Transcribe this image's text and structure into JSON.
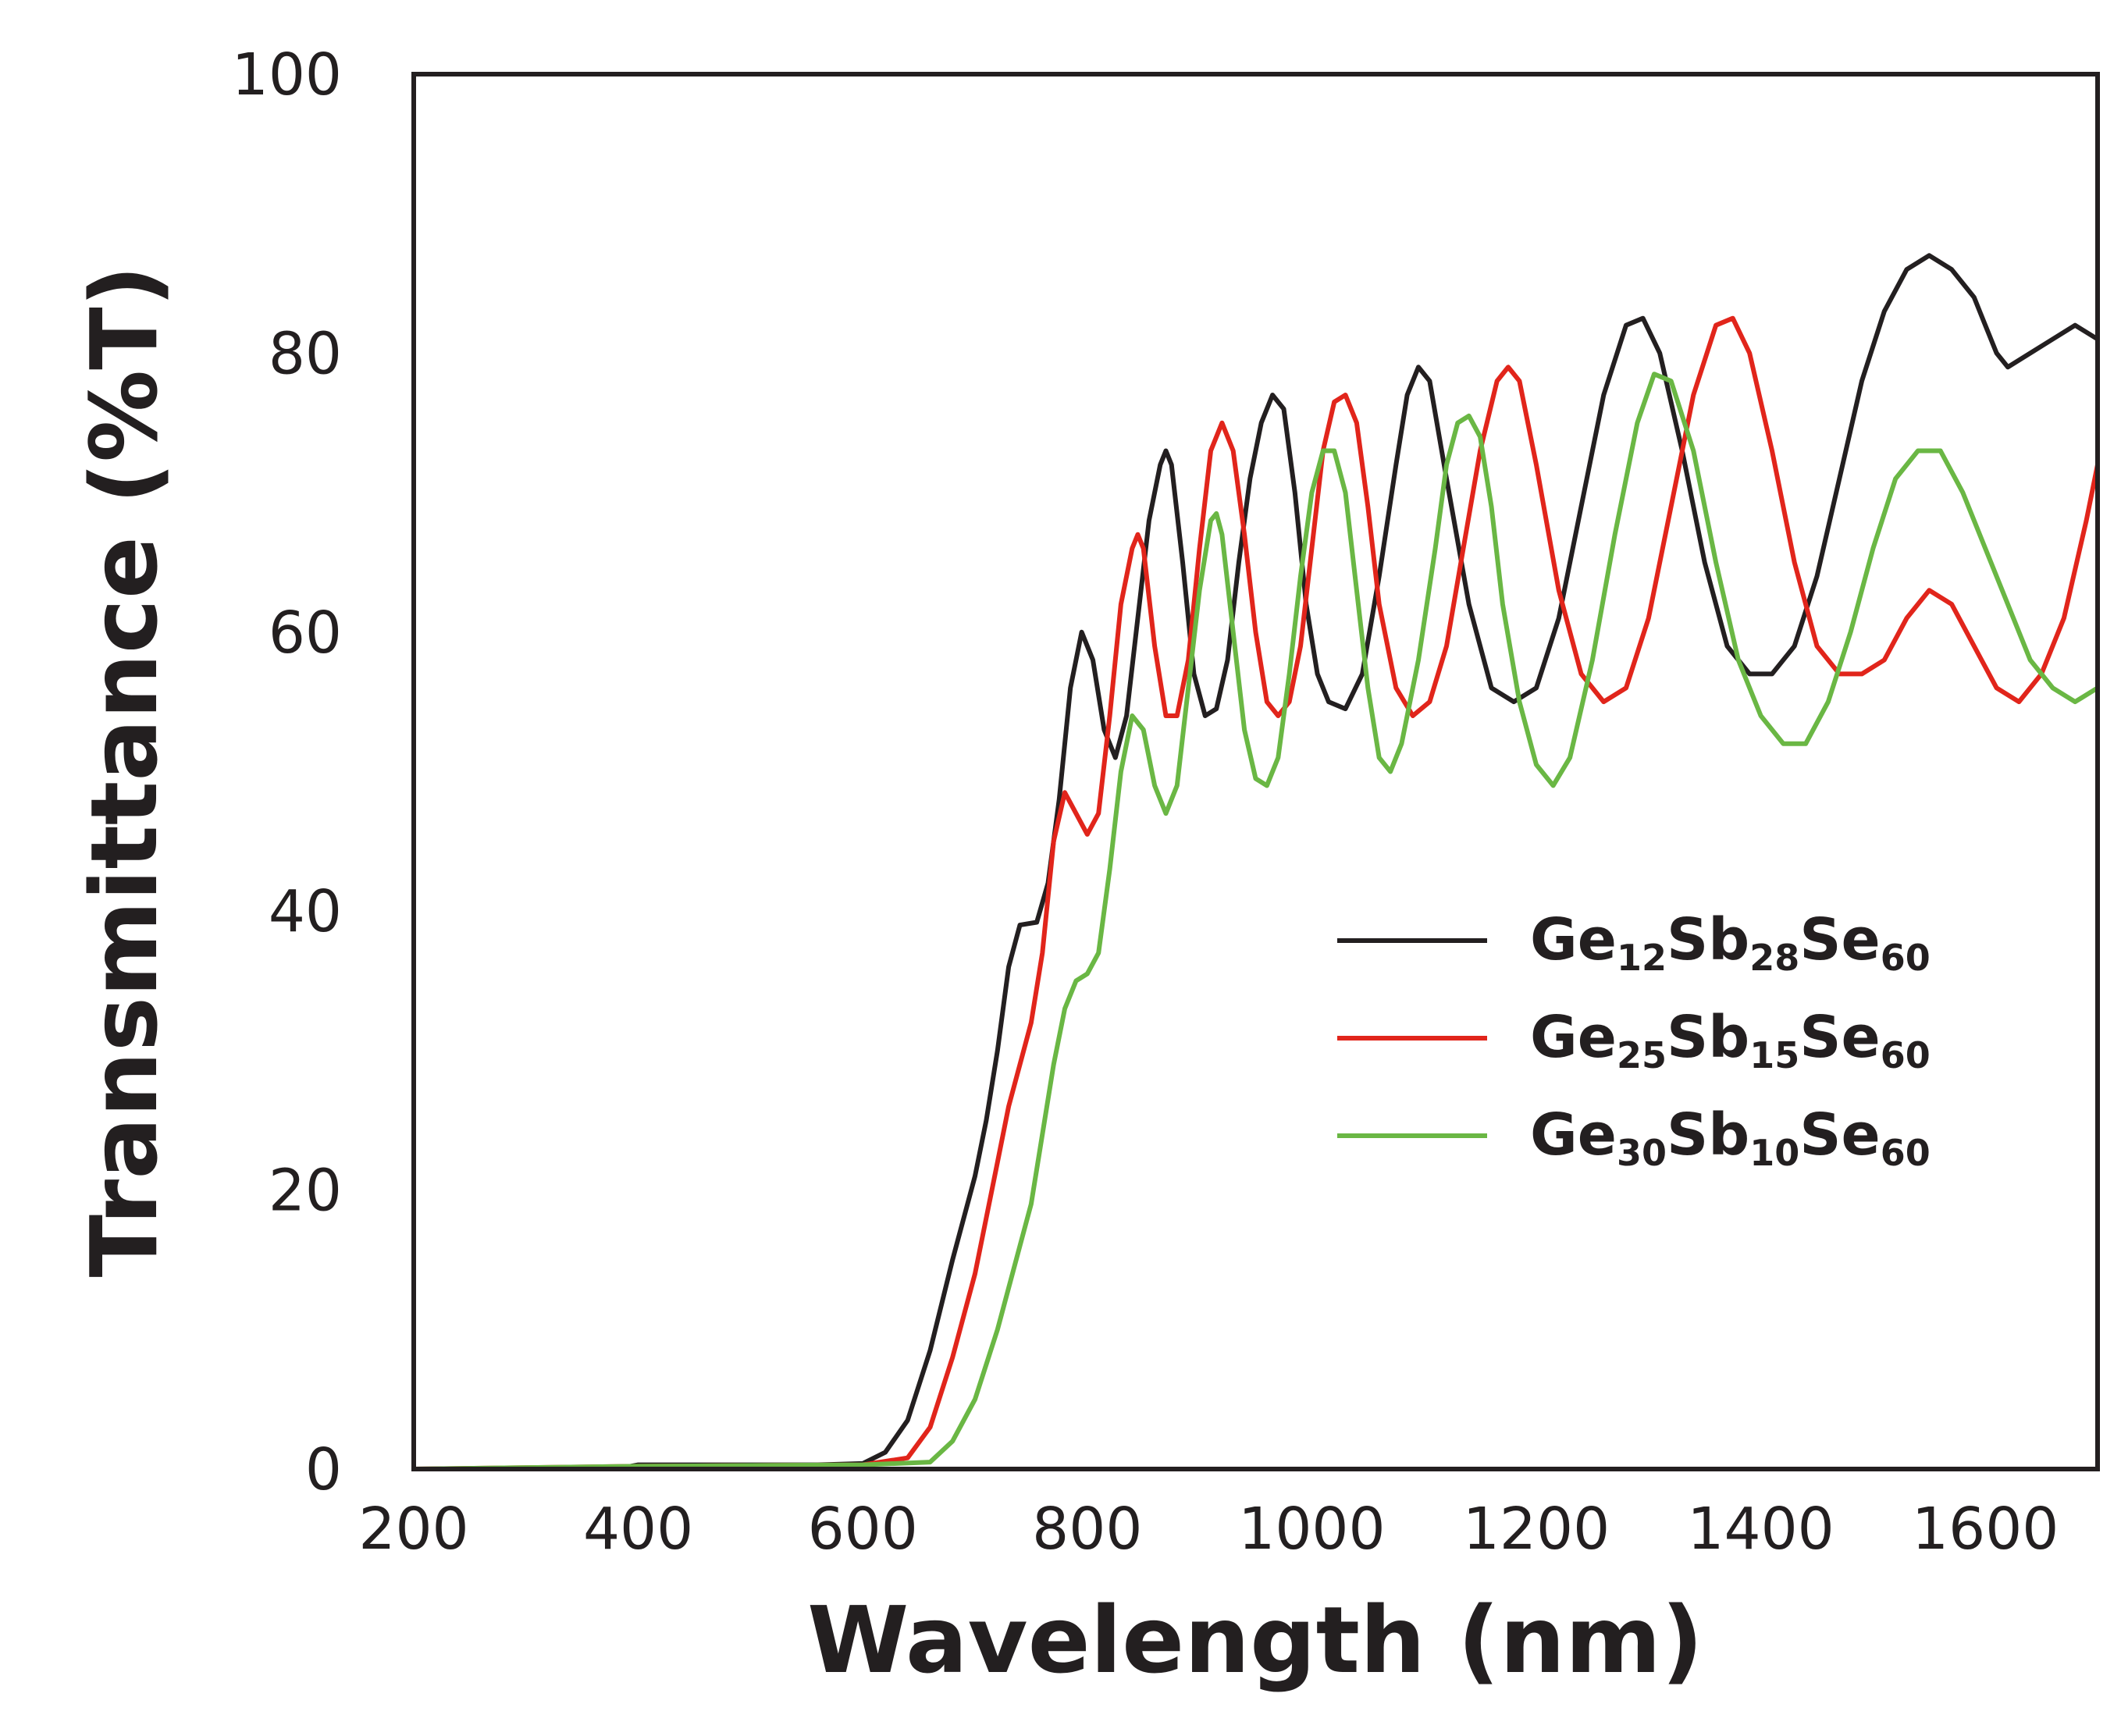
{
  "chart_data": {
    "type": "line",
    "title": "",
    "xlabel": "Wavelength (nm)",
    "ylabel": "Transmittance (%T)",
    "xlim": [
      200,
      1700
    ],
    "ylim": [
      0,
      100
    ],
    "xticks": [
      200,
      400,
      600,
      800,
      1000,
      1200,
      1400,
      1600
    ],
    "yticks": [
      0,
      20,
      40,
      60,
      80,
      100
    ],
    "grid": false,
    "legend_position": "center-right",
    "series": [
      {
        "name": "Ge12Sb28Se60",
        "label_parts": [
          [
            "Ge",
            false
          ],
          [
            "12",
            true
          ],
          [
            "Sb",
            false
          ],
          [
            "28",
            true
          ],
          [
            "Se",
            false
          ],
          [
            "60",
            true
          ]
        ],
        "color": "#231f20",
        "points": [
          [
            200,
            0
          ],
          [
            380,
            0
          ],
          [
            400,
            0.3
          ],
          [
            500,
            0.3
          ],
          [
            560,
            0.3
          ],
          [
            600,
            0.4
          ],
          [
            620,
            1.2
          ],
          [
            640,
            3.5
          ],
          [
            660,
            8.5
          ],
          [
            680,
            15
          ],
          [
            700,
            21
          ],
          [
            710,
            25
          ],
          [
            720,
            30
          ],
          [
            730,
            36
          ],
          [
            740,
            39
          ],
          [
            755,
            39.2
          ],
          [
            765,
            42
          ],
          [
            775,
            48
          ],
          [
            785,
            56
          ],
          [
            795,
            60
          ],
          [
            805,
            58
          ],
          [
            815,
            53
          ],
          [
            825,
            51
          ],
          [
            835,
            54
          ],
          [
            845,
            61
          ],
          [
            855,
            68
          ],
          [
            865,
            72
          ],
          [
            870,
            73
          ],
          [
            875,
            72
          ],
          [
            885,
            65
          ],
          [
            895,
            57
          ],
          [
            905,
            54
          ],
          [
            915,
            54.5
          ],
          [
            925,
            58
          ],
          [
            935,
            65
          ],
          [
            945,
            71
          ],
          [
            955,
            75
          ],
          [
            965,
            77
          ],
          [
            975,
            76
          ],
          [
            985,
            70
          ],
          [
            995,
            62
          ],
          [
            1005,
            57
          ],
          [
            1015,
            55
          ],
          [
            1030,
            54.5
          ],
          [
            1045,
            57
          ],
          [
            1060,
            64
          ],
          [
            1075,
            72
          ],
          [
            1085,
            77
          ],
          [
            1095,
            79
          ],
          [
            1105,
            78
          ],
          [
            1120,
            71
          ],
          [
            1140,
            62
          ],
          [
            1160,
            56
          ],
          [
            1180,
            55
          ],
          [
            1200,
            56
          ],
          [
            1220,
            61
          ],
          [
            1240,
            69
          ],
          [
            1260,
            77
          ],
          [
            1280,
            82
          ],
          [
            1295,
            82.5
          ],
          [
            1310,
            80
          ],
          [
            1330,
            73
          ],
          [
            1350,
            65
          ],
          [
            1370,
            59
          ],
          [
            1390,
            57
          ],
          [
            1410,
            57
          ],
          [
            1430,
            59
          ],
          [
            1450,
            64
          ],
          [
            1470,
            71
          ],
          [
            1490,
            78
          ],
          [
            1510,
            83
          ],
          [
            1530,
            86
          ],
          [
            1550,
            87
          ],
          [
            1570,
            86
          ],
          [
            1590,
            84
          ],
          [
            1600,
            82
          ],
          [
            1610,
            80
          ],
          [
            1620,
            79
          ],
          [
            1640,
            80
          ],
          [
            1660,
            81
          ],
          [
            1680,
            82
          ],
          [
            1700,
            81
          ]
        ]
      },
      {
        "name": "Ge25Sb15Se60",
        "label_parts": [
          [
            "Ge",
            false
          ],
          [
            "25",
            true
          ],
          [
            "Sb",
            false
          ],
          [
            "15",
            true
          ],
          [
            "Se",
            false
          ],
          [
            "60",
            true
          ]
        ],
        "color": "#e1251b",
        "points": [
          [
            200,
            0
          ],
          [
            400,
            0.2
          ],
          [
            600,
            0.3
          ],
          [
            640,
            0.8
          ],
          [
            660,
            3
          ],
          [
            680,
            8
          ],
          [
            700,
            14
          ],
          [
            710,
            18
          ],
          [
            720,
            22
          ],
          [
            730,
            26
          ],
          [
            740,
            29
          ],
          [
            750,
            32
          ],
          [
            760,
            37
          ],
          [
            770,
            45
          ],
          [
            780,
            48.5
          ],
          [
            790,
            47
          ],
          [
            800,
            45.5
          ],
          [
            810,
            47
          ],
          [
            820,
            54
          ],
          [
            830,
            62
          ],
          [
            840,
            66
          ],
          [
            845,
            67
          ],
          [
            850,
            66
          ],
          [
            860,
            59
          ],
          [
            870,
            54
          ],
          [
            880,
            54
          ],
          [
            890,
            58
          ],
          [
            900,
            66
          ],
          [
            910,
            73
          ],
          [
            920,
            75
          ],
          [
            930,
            73
          ],
          [
            940,
            67
          ],
          [
            950,
            60
          ],
          [
            960,
            55
          ],
          [
            970,
            54
          ],
          [
            980,
            55
          ],
          [
            990,
            59
          ],
          [
            1000,
            66
          ],
          [
            1010,
            73
          ],
          [
            1020,
            76.5
          ],
          [
            1030,
            77
          ],
          [
            1040,
            75
          ],
          [
            1050,
            69
          ],
          [
            1060,
            62
          ],
          [
            1075,
            56
          ],
          [
            1090,
            54
          ],
          [
            1105,
            55
          ],
          [
            1120,
            59
          ],
          [
            1135,
            66
          ],
          [
            1150,
            73
          ],
          [
            1165,
            78
          ],
          [
            1175,
            79
          ],
          [
            1185,
            78
          ],
          [
            1200,
            72
          ],
          [
            1220,
            63
          ],
          [
            1240,
            57
          ],
          [
            1260,
            55
          ],
          [
            1280,
            56
          ],
          [
            1300,
            61
          ],
          [
            1320,
            69
          ],
          [
            1340,
            77
          ],
          [
            1360,
            82
          ],
          [
            1375,
            82.5
          ],
          [
            1390,
            80
          ],
          [
            1410,
            73
          ],
          [
            1430,
            65
          ],
          [
            1450,
            59
          ],
          [
            1470,
            57
          ],
          [
            1490,
            57
          ],
          [
            1510,
            58
          ],
          [
            1530,
            61
          ],
          [
            1550,
            63
          ],
          [
            1570,
            62
          ],
          [
            1590,
            59
          ],
          [
            1610,
            56
          ],
          [
            1630,
            55
          ],
          [
            1650,
            57
          ],
          [
            1670,
            61
          ],
          [
            1690,
            68
          ],
          [
            1700,
            72
          ]
        ]
      },
      {
        "name": "Ge30Sb10Se60",
        "label_parts": [
          [
            "Ge",
            false
          ],
          [
            "30",
            true
          ],
          [
            "Sb",
            false
          ],
          [
            "10",
            true
          ],
          [
            "Se",
            false
          ],
          [
            "60",
            true
          ]
        ],
        "color": "#6ab744",
        "points": [
          [
            200,
            0
          ],
          [
            400,
            0.2
          ],
          [
            600,
            0.3
          ],
          [
            660,
            0.5
          ],
          [
            680,
            2
          ],
          [
            700,
            5
          ],
          [
            720,
            10
          ],
          [
            740,
            16
          ],
          [
            750,
            19
          ],
          [
            760,
            24
          ],
          [
            770,
            29
          ],
          [
            780,
            33
          ],
          [
            790,
            35
          ],
          [
            800,
            35.5
          ],
          [
            810,
            37
          ],
          [
            820,
            43
          ],
          [
            830,
            50
          ],
          [
            840,
            54
          ],
          [
            850,
            53
          ],
          [
            860,
            49
          ],
          [
            870,
            47
          ],
          [
            880,
            49
          ],
          [
            890,
            56
          ],
          [
            900,
            63
          ],
          [
            910,
            68
          ],
          [
            915,
            68.5
          ],
          [
            920,
            67
          ],
          [
            930,
            60
          ],
          [
            940,
            53
          ],
          [
            950,
            49.5
          ],
          [
            960,
            49
          ],
          [
            970,
            51
          ],
          [
            980,
            57
          ],
          [
            990,
            64
          ],
          [
            1000,
            70
          ],
          [
            1010,
            73
          ],
          [
            1020,
            73
          ],
          [
            1030,
            70
          ],
          [
            1040,
            63
          ],
          [
            1050,
            56
          ],
          [
            1060,
            51
          ],
          [
            1070,
            50
          ],
          [
            1080,
            52
          ],
          [
            1095,
            58
          ],
          [
            1110,
            66
          ],
          [
            1120,
            72
          ],
          [
            1130,
            75
          ],
          [
            1140,
            75.5
          ],
          [
            1150,
            74
          ],
          [
            1160,
            69
          ],
          [
            1170,
            62
          ],
          [
            1185,
            55
          ],
          [
            1200,
            50.5
          ],
          [
            1215,
            49
          ],
          [
            1230,
            51
          ],
          [
            1250,
            58
          ],
          [
            1270,
            67
          ],
          [
            1290,
            75
          ],
          [
            1305,
            78.5
          ],
          [
            1320,
            78
          ],
          [
            1340,
            73
          ],
          [
            1360,
            65
          ],
          [
            1380,
            58
          ],
          [
            1400,
            54
          ],
          [
            1420,
            52
          ],
          [
            1440,
            52
          ],
          [
            1460,
            55
          ],
          [
            1480,
            60
          ],
          [
            1500,
            66
          ],
          [
            1520,
            71
          ],
          [
            1540,
            73
          ],
          [
            1560,
            73
          ],
          [
            1580,
            70
          ],
          [
            1600,
            66
          ],
          [
            1620,
            62
          ],
          [
            1640,
            58
          ],
          [
            1660,
            56
          ],
          [
            1680,
            55
          ],
          [
            1700,
            56
          ]
        ]
      }
    ]
  }
}
